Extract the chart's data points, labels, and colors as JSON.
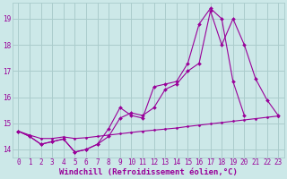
{
  "background_color": "#cce8e8",
  "grid_color": "#aacccc",
  "line_color": "#990099",
  "marker_color": "#990099",
  "xlabel": "Windchill (Refroidissement éolien,°C)",
  "xlabel_fontsize": 6.5,
  "tick_fontsize": 5.5,
  "yticks": [
    14,
    15,
    16,
    17,
    18,
    19
  ],
  "xticks": [
    0,
    1,
    2,
    3,
    4,
    5,
    6,
    7,
    8,
    9,
    10,
    11,
    12,
    13,
    14,
    15,
    16,
    17,
    18,
    19,
    20,
    21,
    22,
    23
  ],
  "xlim": [
    -0.5,
    23.5
  ],
  "ylim": [
    13.7,
    19.6
  ],
  "series": [
    {
      "x": [
        0,
        1,
        2,
        3,
        4,
        5,
        6,
        7,
        8,
        9,
        10,
        11,
        12,
        13,
        14,
        15,
        16,
        17,
        18,
        19,
        20,
        21,
        22,
        23
      ],
      "y": [
        14.7,
        14.5,
        14.2,
        14.3,
        14.4,
        13.9,
        14.0,
        14.2,
        14.5,
        15.2,
        15.4,
        15.3,
        15.6,
        16.3,
        16.5,
        17.0,
        17.3,
        19.3,
        18.0,
        19.0,
        18.0,
        16.7,
        15.9,
        15.3
      ],
      "lw": 0.8,
      "ms": 2.0
    },
    {
      "x": [
        0,
        1,
        2,
        3,
        4,
        5,
        6,
        7,
        8,
        9,
        10,
        11,
        12,
        13,
        14,
        15,
        16,
        17,
        18,
        19,
        20
      ],
      "y": [
        14.7,
        14.5,
        14.2,
        14.3,
        14.4,
        13.9,
        14.0,
        14.2,
        14.8,
        15.6,
        15.3,
        15.2,
        16.4,
        16.5,
        16.6,
        17.3,
        18.8,
        19.4,
        19.0,
        16.6,
        15.3
      ],
      "lw": 0.8,
      "ms": 2.0
    },
    {
      "x": [
        0,
        1,
        2,
        3,
        4,
        5,
        6,
        7,
        8,
        9,
        10,
        11,
        12,
        13,
        14,
        15,
        16,
        17,
        18,
        19,
        20,
        21,
        22,
        23
      ],
      "y": [
        14.7,
        14.55,
        14.42,
        14.42,
        14.48,
        14.42,
        14.45,
        14.5,
        14.55,
        14.6,
        14.65,
        14.7,
        14.74,
        14.78,
        14.82,
        14.88,
        14.93,
        14.98,
        15.03,
        15.08,
        15.13,
        15.18,
        15.23,
        15.28
      ],
      "lw": 0.8,
      "ms": 1.5
    }
  ]
}
